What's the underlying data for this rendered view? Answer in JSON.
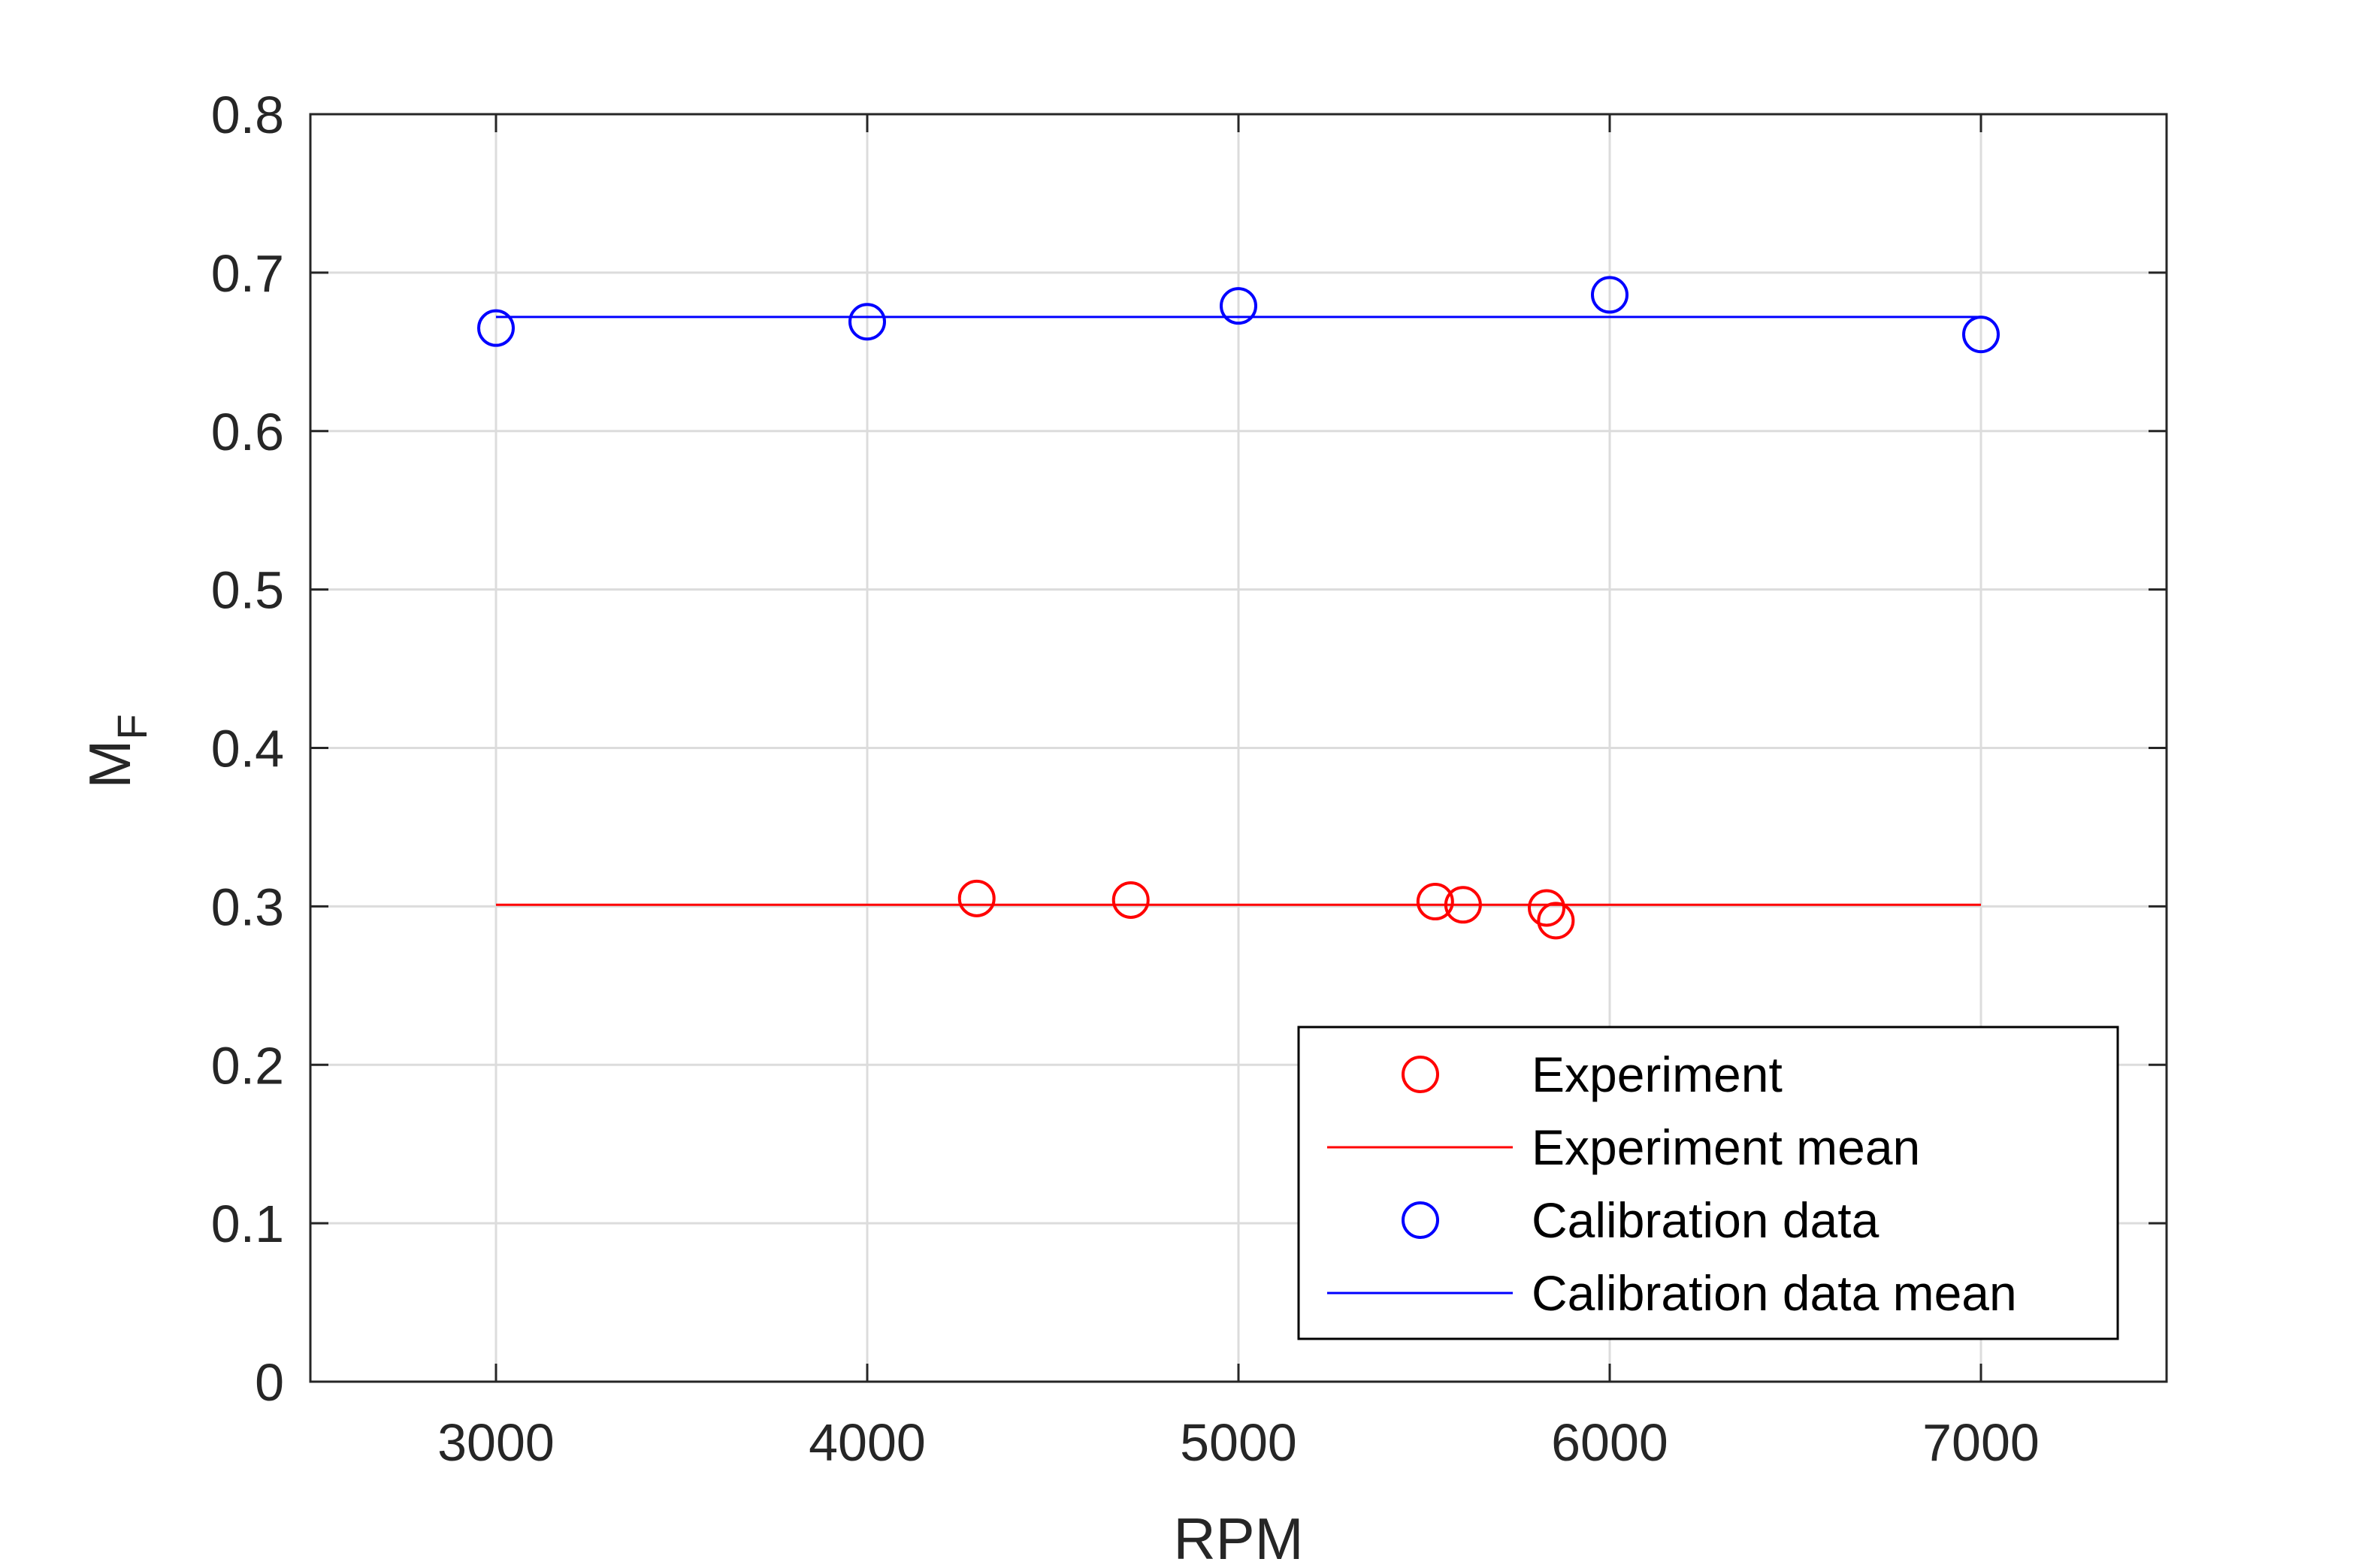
{
  "chart_data": {
    "type": "scatter",
    "xlabel": "RPM",
    "ylabel": {
      "main": "M",
      "subscript": "F"
    },
    "xlim": [
      2500,
      7500
    ],
    "ylim": [
      0,
      0.8
    ],
    "xticks": [
      "3000",
      "4000",
      "5000",
      "6000",
      "7000"
    ],
    "yticks": [
      "0",
      "0.1",
      "0.2",
      "0.3",
      "0.4",
      "0.5",
      "0.6",
      "0.7",
      "0.8"
    ],
    "grid": true,
    "legend_position": "bottom-right",
    "series": [
      {
        "name": "Experiment",
        "kind": "markers",
        "marker": "circle",
        "color": "#ff0000",
        "points": [
          {
            "x": 4295,
            "y": 0.305
          },
          {
            "x": 4710,
            "y": 0.304
          },
          {
            "x": 5530,
            "y": 0.303
          },
          {
            "x": 5605,
            "y": 0.301
          },
          {
            "x": 5830,
            "y": 0.299
          },
          {
            "x": 5855,
            "y": 0.291
          }
        ]
      },
      {
        "name": "Experiment mean",
        "kind": "line",
        "color": "#ff0000",
        "points": [
          {
            "x": 3000,
            "y": 0.301
          },
          {
            "x": 7000,
            "y": 0.301
          }
        ]
      },
      {
        "name": "Calibration data",
        "kind": "markers",
        "marker": "circle",
        "color": "#0000ff",
        "points": [
          {
            "x": 3000,
            "y": 0.665
          },
          {
            "x": 4000,
            "y": 0.669
          },
          {
            "x": 5000,
            "y": 0.679
          },
          {
            "x": 6000,
            "y": 0.686
          },
          {
            "x": 7000,
            "y": 0.661
          }
        ]
      },
      {
        "name": "Calibration data mean",
        "kind": "line",
        "color": "#0000ff",
        "points": [
          {
            "x": 3000,
            "y": 0.672
          },
          {
            "x": 7000,
            "y": 0.672
          }
        ]
      }
    ]
  }
}
